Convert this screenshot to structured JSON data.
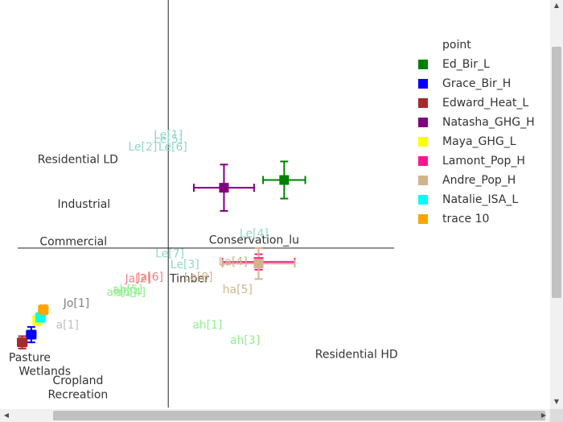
{
  "chart_data": {
    "type": "scatter",
    "xlim": [
      -1.0,
      1.5
    ],
    "ylim": [
      -1.0,
      1.5
    ],
    "axis_lines": {
      "x": 0,
      "y": 0
    },
    "grid": false,
    "legend": {
      "title": "point",
      "placement": "right"
    },
    "series": [
      {
        "name": "Ed_Bir_L",
        "color": "#008000",
        "x": 0.77,
        "y": 0.44,
        "xerr": 0.14,
        "yerr": 0.12
      },
      {
        "name": "Grace_Bir_H",
        "color": "#0000ff",
        "x": -0.91,
        "y": -0.56,
        "xerr": 0.03,
        "yerr": 0.05
      },
      {
        "name": "Edward_Heat_L",
        "color": "#a52a2a",
        "x": -0.97,
        "y": -0.61,
        "xerr": 0.03,
        "yerr": 0.04
      },
      {
        "name": "Natasha_GHG_H",
        "color": "#800080",
        "x": 0.37,
        "y": 0.39,
        "xerr": 0.2,
        "yerr": 0.15
      },
      {
        "name": "Maya_GHG_L",
        "color": "#ffff00",
        "x": -0.87,
        "y": -0.47,
        "xerr": 0.02,
        "yerr": 0.03
      },
      {
        "name": "Lamont_Pop_H",
        "color": "#ff1493",
        "x": 0.6,
        "y": -0.09,
        "xerr": 0.24,
        "yerr": 0.05
      },
      {
        "name": "Andre_Pop_H",
        "color": "#d2b48c",
        "x": 0.6,
        "y": -0.1,
        "xerr": 0.24,
        "yerr": 0.1
      },
      {
        "name": "Natalie_ISA_L",
        "color": "#00ffff",
        "x": -0.85,
        "y": -0.45,
        "xerr": 0.03,
        "yerr": 0.03
      },
      {
        "name": "trace 10",
        "color": "#ffa500",
        "x": -0.83,
        "y": -0.4,
        "xerr": 0.03,
        "yerr": 0.03
      }
    ],
    "category_labels": [
      {
        "text": "Residential LD",
        "x": -0.6,
        "y": 0.57
      },
      {
        "text": "Industrial",
        "x": -0.56,
        "y": 0.28
      },
      {
        "text": "Commercial",
        "x": -0.63,
        "y": 0.04
      },
      {
        "text": "Conservation_lu",
        "x": 0.57,
        "y": 0.05
      },
      {
        "text": "Timber",
        "x": 0.14,
        "y": -0.2
      },
      {
        "text": "Residential HD",
        "x": 1.25,
        "y": -0.69
      },
      {
        "text": "Pasture",
        "x": -0.92,
        "y": -0.71
      },
      {
        "text": "Wetlands",
        "x": -0.82,
        "y": -0.8
      },
      {
        "text": "Cropland",
        "x": -0.6,
        "y": -0.86
      },
      {
        "text": "Recreation",
        "x": -0.6,
        "y": -0.95
      }
    ],
    "annotations": [
      {
        "text": "Le[1]",
        "x": 0.0,
        "y": 0.73,
        "color": "#8fd8c8"
      },
      {
        "text": "Le[5]",
        "x": 0.0,
        "y": 0.7,
        "color": "#8fd8c8"
      },
      {
        "text": "Le[2]",
        "x": -0.17,
        "y": 0.65,
        "color": "#8fd8c8"
      },
      {
        "text": "Le[6]",
        "x": 0.03,
        "y": 0.65,
        "color": "#8fd8c8"
      },
      {
        "text": "Le[4]",
        "x": 0.57,
        "y": 0.09,
        "color": "#8fd8c8"
      },
      {
        "text": "Le[7]",
        "x": 0.01,
        "y": -0.04,
        "color": "#8fd8c8"
      },
      {
        "text": "Le[3]",
        "x": 0.11,
        "y": -0.11,
        "color": "#8fd8c8"
      },
      {
        "text": "Le[8]",
        "x": 0.2,
        "y": -0.19,
        "color": "#d2b48c"
      },
      {
        "text": "La[4]",
        "x": 0.43,
        "y": -0.09,
        "color": "#d2b48c"
      },
      {
        "text": "ha[5]",
        "x": 0.46,
        "y": -0.27,
        "color": "#d2b48c"
      },
      {
        "text": "Jo[1]",
        "x": -0.61,
        "y": -0.36,
        "color": "#808080"
      },
      {
        "text": "a[1]",
        "x": -0.67,
        "y": -0.5,
        "color": "#c0c0c0"
      },
      {
        "text": "ah[1]",
        "x": 0.26,
        "y": -0.5,
        "color": "#90ee90"
      },
      {
        "text": "ah[3]",
        "x": 0.51,
        "y": -0.6,
        "color": "#90ee90"
      },
      {
        "text": "Ja[2]",
        "x": -0.2,
        "y": -0.2,
        "color": "#f08080"
      },
      {
        "text": "Ja[6]",
        "x": -0.12,
        "y": -0.19,
        "color": "#f08080"
      },
      {
        "text": "ah[2]",
        "x": -0.31,
        "y": -0.29,
        "color": "#90ee90"
      },
      {
        "text": "ah[4]",
        "x": -0.25,
        "y": -0.29,
        "color": "#90ee90"
      },
      {
        "text": "ah[5]",
        "x": -0.27,
        "y": -0.27,
        "color": "#90ee90"
      }
    ]
  }
}
